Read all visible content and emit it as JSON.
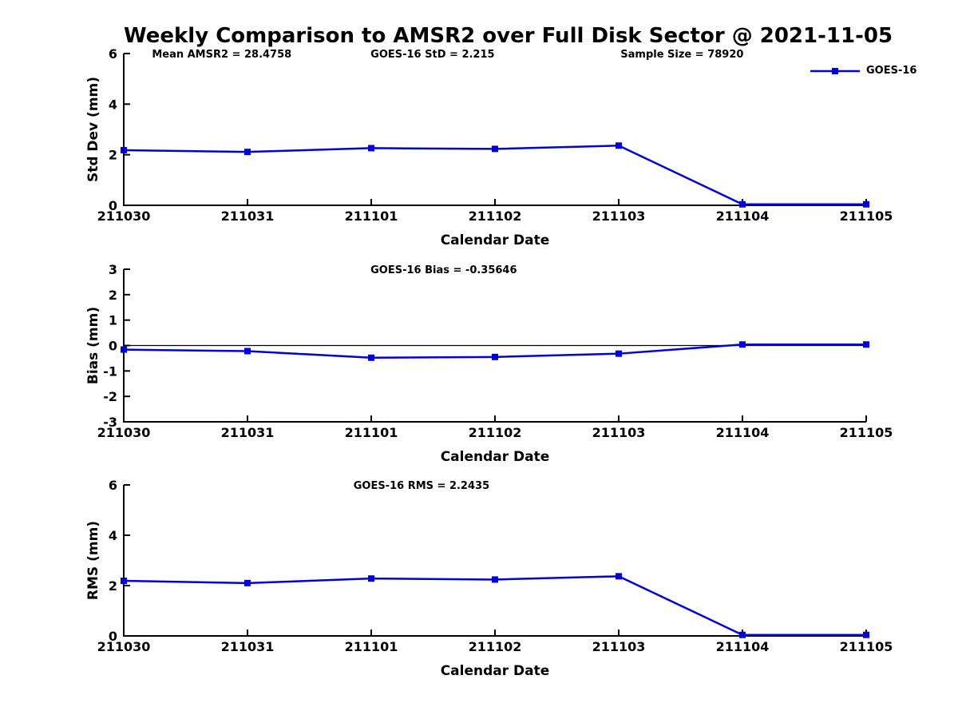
{
  "title": "Weekly Comparison to AMSR2 over Full Disk Sector @ 2021-11-05",
  "legend": {
    "label": "GOES-16",
    "color": "#0000dd",
    "marker": "square"
  },
  "xlabel": "Calendar Date",
  "categories": [
    "211030",
    "211031",
    "211101",
    "211102",
    "211103",
    "211104",
    "211105"
  ],
  "chart_data": [
    {
      "type": "line",
      "name": "std-dev",
      "ylabel": "Std Dev (mm)",
      "ylim": [
        0,
        6
      ],
      "yticks": [
        0,
        2,
        4,
        6
      ],
      "grid": false,
      "zero_line": false,
      "annotations": [
        {
          "text": "Mean AMSR2 = 28.4758",
          "fx": 0.132
        },
        {
          "text": "GOES-16 StD = 2.215",
          "fx": 0.416
        },
        {
          "text": "Sample Size = 78920",
          "fx": 0.752
        }
      ],
      "series": [
        {
          "name": "GOES-16",
          "values": [
            2.18,
            2.11,
            2.26,
            2.23,
            2.36,
            0.04,
            0.04
          ]
        }
      ]
    },
    {
      "type": "line",
      "name": "bias",
      "ylabel": "Bias (mm)",
      "ylim": [
        -3,
        3
      ],
      "yticks": [
        -3,
        -2,
        -1,
        0,
        1,
        2,
        3
      ],
      "grid": false,
      "zero_line": true,
      "annotations": [
        {
          "text": "GOES-16 Bias  = -0.35646",
          "fx": 0.431
        }
      ],
      "series": [
        {
          "name": "GOES-16",
          "values": [
            -0.16,
            -0.22,
            -0.48,
            -0.45,
            -0.32,
            0.04,
            0.04
          ]
        }
      ]
    },
    {
      "type": "line",
      "name": "rms",
      "ylabel": "RMS (mm)",
      "ylim": [
        0,
        6
      ],
      "yticks": [
        0,
        2,
        4,
        6
      ],
      "grid": false,
      "zero_line": false,
      "annotations": [
        {
          "text": "GOES-16 RMS = 2.2435",
          "fx": 0.401
        }
      ],
      "series": [
        {
          "name": "GOES-16",
          "values": [
            2.19,
            2.1,
            2.28,
            2.24,
            2.37,
            0.04,
            0.04
          ]
        }
      ]
    }
  ]
}
